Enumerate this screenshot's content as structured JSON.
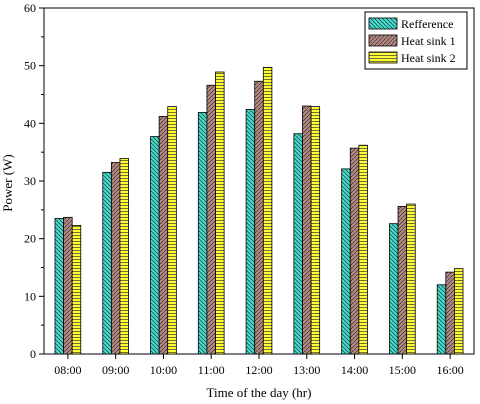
{
  "chart_data": {
    "type": "bar",
    "title": "",
    "xlabel": "Time of the day (hr)",
    "ylabel": "Power (W)",
    "ylim": [
      0,
      60
    ],
    "yticks": [
      0,
      10,
      20,
      30,
      40,
      50,
      60
    ],
    "grid": false,
    "legend_position": "top-right",
    "categories": [
      "08:00",
      "09:00",
      "10:00",
      "11:00",
      "12:00",
      "13:00",
      "14:00",
      "15:00",
      "16:00"
    ],
    "series": [
      {
        "name": "Refference",
        "color": "#40e0d0",
        "pattern": "diagonal-down",
        "values": [
          23.5,
          31.5,
          37.7,
          41.9,
          42.4,
          38.2,
          32.1,
          22.6,
          12.0
        ]
      },
      {
        "name": "Heat sink 1",
        "color": "#b88a82",
        "pattern": "diagonal-up",
        "values": [
          23.7,
          33.2,
          41.2,
          46.6,
          47.3,
          43.0,
          35.7,
          25.6,
          14.2
        ]
      },
      {
        "name": "Heat sink 2",
        "color": "#ffff33",
        "pattern": "horizontal",
        "values": [
          22.3,
          33.9,
          42.9,
          48.9,
          49.7,
          42.9,
          36.2,
          26.0,
          14.8
        ]
      }
    ]
  }
}
